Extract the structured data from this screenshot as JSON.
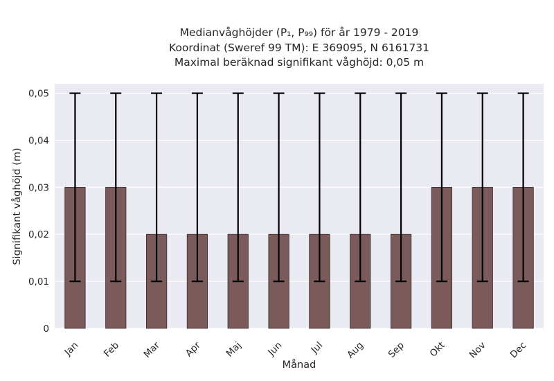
{
  "chart_data": {
    "type": "bar",
    "title_lines": [
      "Medianvåghöjder (P₁, P₉₉) för år 1979 - 2019",
      "Koordinat (Sweref 99 TM): E 369095, N 6161731",
      "Maximal beräknad signifikant våghöjd: 0,05 m"
    ],
    "xlabel": "Månad",
    "ylabel": "Signifikant våghöjd (m)",
    "categories": [
      "Jan",
      "Feb",
      "Mar",
      "Apr",
      "Maj",
      "Jun",
      "Jul",
      "Aug",
      "Sep",
      "Okt",
      "Nov",
      "Dec"
    ],
    "values": [
      0.03,
      0.03,
      0.02,
      0.02,
      0.02,
      0.02,
      0.02,
      0.02,
      0.02,
      0.03,
      0.03,
      0.03
    ],
    "error_low": [
      0.01,
      0.01,
      0.01,
      0.01,
      0.01,
      0.01,
      0.01,
      0.01,
      0.01,
      0.01,
      0.01,
      0.01
    ],
    "error_high": [
      0.05,
      0.05,
      0.05,
      0.05,
      0.05,
      0.05,
      0.05,
      0.05,
      0.05,
      0.05,
      0.05,
      0.05
    ],
    "yticks": [
      0,
      0.01,
      0.02,
      0.03,
      0.04,
      0.05
    ],
    "ytick_labels": [
      "0",
      "0,01",
      "0,02",
      "0,03",
      "0,04",
      "0,05"
    ],
    "ylim": [
      0,
      0.052
    ],
    "grid": true,
    "colors": {
      "bar": "#7a5a5a",
      "bar_edge": "#3a2a2a",
      "error": "#000000",
      "plot_bg": "#eaeaf2",
      "grid": "#ffffff"
    }
  }
}
